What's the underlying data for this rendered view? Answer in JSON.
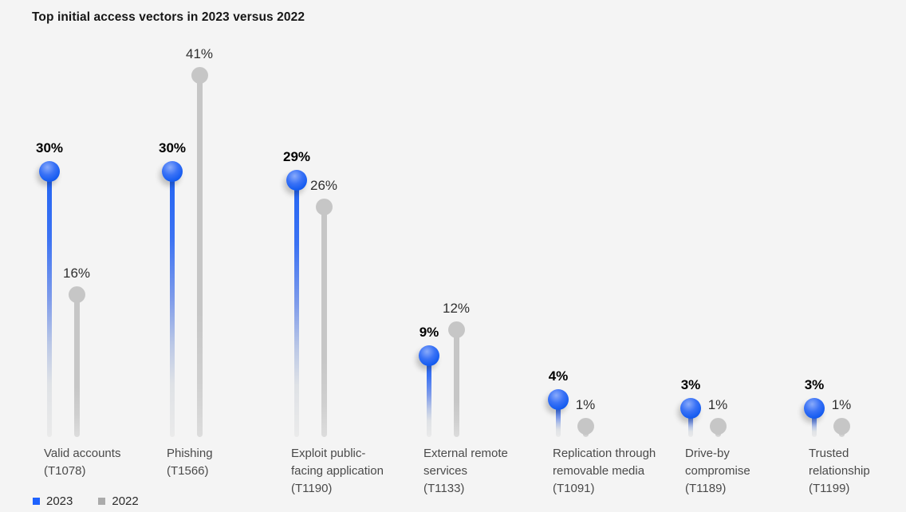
{
  "title": "Top initial access vectors in 2023 versus 2022",
  "colors": {
    "background": "#f4f4f4",
    "accent_blue_2023": "#0f62fe",
    "gray_2022": "#c6c6c6",
    "legend_swatch_2023": "#1f62fe",
    "legend_swatch_2022": "#ababab",
    "title_text": "#161616",
    "category_text": "#4a4a4a"
  },
  "chart_data": {
    "type": "bar",
    "variant": "lollipop",
    "title": "Top initial access vectors in 2023 versus 2022",
    "unit": "%",
    "grid": false,
    "legend_position": "bottom-left",
    "ylim": [
      0,
      45
    ],
    "categories": [
      {
        "name": "Valid accounts",
        "code": "(T1078)"
      },
      {
        "name": "Phishing",
        "code": "(T1566)"
      },
      {
        "name": "Exploit public-\nfacing application",
        "code": "(T1190)"
      },
      {
        "name": "External remote\nservices",
        "code": "(T1133)"
      },
      {
        "name": "Replication through\nremovable media",
        "code": "(T1091)"
      },
      {
        "name": "Drive-by\ncompromise",
        "code": "(T1189)"
      },
      {
        "name": "Trusted\nrelationship",
        "code": "(T1199)"
      }
    ],
    "series": [
      {
        "name": "2023",
        "color": "#0f62fe",
        "values": [
          30,
          30,
          29,
          9,
          4,
          3,
          3
        ],
        "value_labels": [
          "30%",
          "30%",
          "29%",
          "9%",
          "4%",
          "3%",
          "3%"
        ]
      },
      {
        "name": "2022",
        "color": "#c6c6c6",
        "values": [
          16,
          41,
          26,
          12,
          1,
          1,
          1
        ],
        "value_labels": [
          "16%",
          "41%",
          "26%",
          "12%",
          "1%",
          "1%",
          "1%"
        ]
      }
    ]
  }
}
